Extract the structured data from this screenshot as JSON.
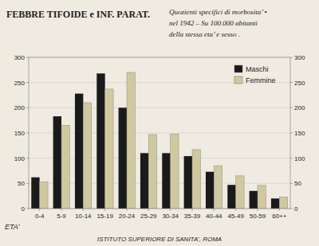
{
  "chart_data": {
    "type": "bar",
    "title": "FEBBRE TIFOIDE e INF. PARAT.",
    "subtitle": [
      "Quozienti specifici di morbosita’ •",
      "nel 1942 – Su 100.000 abitanti",
      "della stessa eta’ e sesso ."
    ],
    "xlabel": "ETA’",
    "annotations": [
      "ISTITUTO SUPERIORE DI SANITA’, ROMA"
    ],
    "categories": [
      "0-4",
      "5-9",
      "10-14",
      "15-19",
      "20-24",
      "25-29",
      "30-34",
      "35-39",
      "40-44",
      "45-49",
      "50-59",
      "60++"
    ],
    "series": [
      {
        "name": "Maschi",
        "color": "#1a1a1a",
        "values": [
          62,
          183,
          228,
          268,
          200,
          110,
          110,
          104,
          73,
          47,
          35,
          20
        ]
      },
      {
        "name": "Femmine",
        "color": "#d0c9a0",
        "values": [
          53,
          165,
          210,
          237,
          270,
          147,
          148,
          117,
          85,
          65,
          46,
          23
        ]
      }
    ],
    "ylim": [
      0,
      300
    ],
    "yticks": [
      0,
      50,
      100,
      150,
      200,
      250,
      300
    ],
    "y2lim": [
      0,
      300
    ],
    "y2ticks": [
      0,
      50,
      100,
      150,
      200,
      250,
      300
    ],
    "grid": true,
    "legend": "upper right"
  }
}
